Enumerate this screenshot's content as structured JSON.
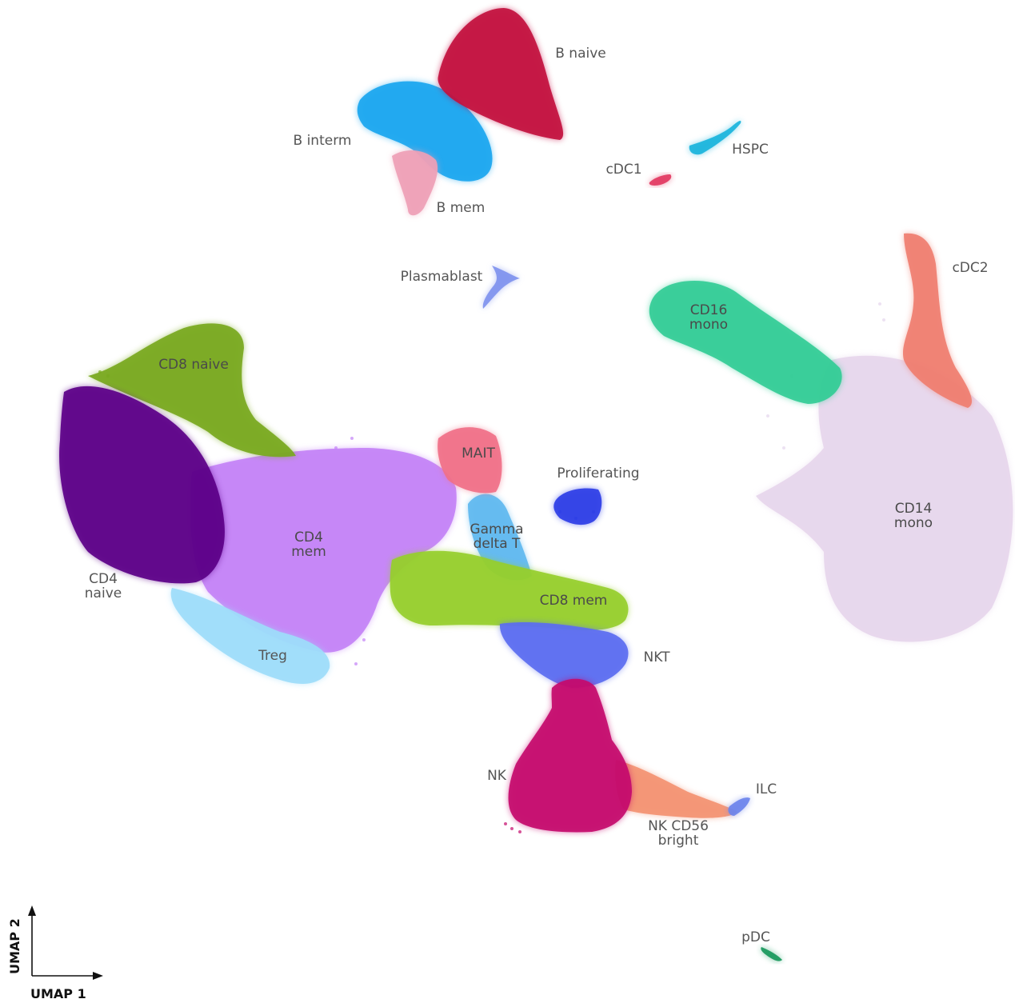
{
  "chart_data": {
    "type": "scatter",
    "title": "",
    "xlabel": "UMAP 1",
    "ylabel": "UMAP 2",
    "grid": false,
    "legend": "none",
    "clusters": [
      {
        "name": "B naive",
        "color": "#c2103e",
        "label_lines": [
          "B naive"
        ]
      },
      {
        "name": "B interm",
        "color": "#1aa6ef",
        "label_lines": [
          "B interm"
        ]
      },
      {
        "name": "B mem",
        "color": "#eea0b6",
        "label_lines": [
          "B mem"
        ]
      },
      {
        "name": "HSPC",
        "color": "#1ab4dc",
        "label_lines": [
          "HSPC"
        ]
      },
      {
        "name": "cDC1",
        "color": "#e23a62",
        "label_lines": [
          "cDC1"
        ]
      },
      {
        "name": "Plasmablast",
        "color": "#7f93ee",
        "label_lines": [
          "Plasmablast"
        ]
      },
      {
        "name": "cDC2",
        "color": "#ef7e70",
        "label_lines": [
          "cDC2"
        ]
      },
      {
        "name": "CD16 mono",
        "color": "#33cc96",
        "label_lines": [
          "CD16",
          "mono"
        ]
      },
      {
        "name": "CD14 mono",
        "color": "#e6d6ec",
        "label_lines": [
          "CD14",
          "mono"
        ]
      },
      {
        "name": "CD8 naive",
        "color": "#78a81e",
        "label_lines": [
          "CD8 naive"
        ]
      },
      {
        "name": "CD4 naive",
        "color": "#5c0088",
        "label_lines": [
          "CD4",
          "naive"
        ]
      },
      {
        "name": "CD4 mem",
        "color": "#c382f6",
        "label_lines": [
          "CD4",
          "mem"
        ]
      },
      {
        "name": "Treg",
        "color": "#9ddcfa",
        "label_lines": [
          "Treg"
        ]
      },
      {
        "name": "MAIT",
        "color": "#f07088",
        "label_lines": [
          "MAIT"
        ]
      },
      {
        "name": "Proliferating",
        "color": "#2e3ee6",
        "label_lines": [
          "Proliferating"
        ]
      },
      {
        "name": "Gamma delta T",
        "color": "#5fb8ef",
        "label_lines": [
          "Gamma",
          "delta T"
        ]
      },
      {
        "name": "CD8 mem",
        "color": "#96ce2c",
        "label_lines": [
          "CD8 mem"
        ]
      },
      {
        "name": "NKT",
        "color": "#5b6df0",
        "label_lines": [
          "NKT"
        ]
      },
      {
        "name": "NK",
        "color": "#c40a6c",
        "label_lines": [
          "NK"
        ]
      },
      {
        "name": "ILC",
        "color": "#6c84ec",
        "label_lines": [
          "ILC"
        ]
      },
      {
        "name": "NK CD56 bright",
        "color": "#f39272",
        "label_lines": [
          "NK CD56",
          "bright"
        ]
      },
      {
        "name": "pDC",
        "color": "#18985c",
        "label_lines": [
          "pDC"
        ]
      }
    ]
  }
}
